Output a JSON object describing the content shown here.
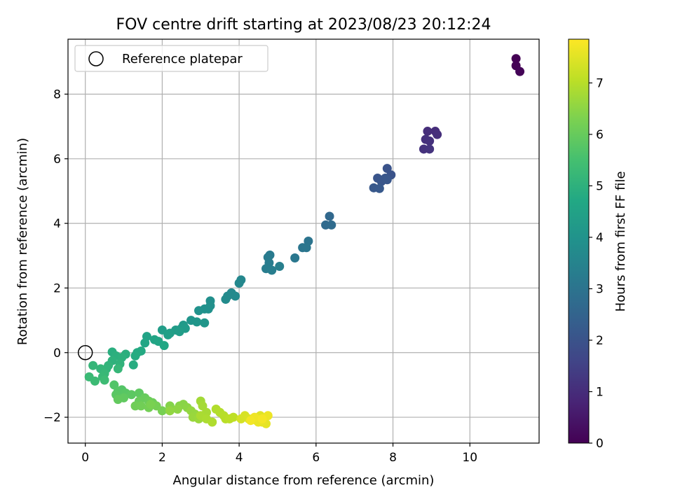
{
  "chart_data": {
    "type": "scatter",
    "title": "FOV centre drift starting at 2023/08/23 20:12:24",
    "xlabel": "Angular distance from reference (arcmin)",
    "ylabel": "Rotation from reference (arcmin)",
    "xlim": [
      -0.45,
      11.8
    ],
    "ylim": [
      -2.8,
      9.7
    ],
    "xticks": [
      0,
      2,
      4,
      6,
      8,
      10
    ],
    "yticks": [
      -2,
      0,
      2,
      4,
      6,
      8
    ],
    "xtick_labels": [
      "0",
      "2",
      "4",
      "6",
      "8",
      "10"
    ],
    "ytick_labels": [
      "−2",
      "0",
      "2",
      "4",
      "6",
      "8"
    ],
    "grid": true,
    "legend": {
      "placement": "upper-left",
      "entries": [
        {
          "label": "Reference platepar",
          "marker": "open-circle"
        }
      ]
    },
    "reference_point": {
      "x": 0,
      "y": 0
    },
    "colorbar": {
      "label": "Hours from first FF file",
      "range": [
        0,
        7.85
      ],
      "colormap": "viridis",
      "ticks": [
        0,
        1,
        2,
        3,
        4,
        5,
        6,
        7
      ],
      "tick_labels": [
        "0",
        "1",
        "2",
        "3",
        "4",
        "5",
        "6",
        "7"
      ]
    },
    "series": [
      {
        "points": [
          [
            11.2,
            9.1,
            0.0
          ],
          [
            11.2,
            8.88,
            0.03
          ],
          [
            11.3,
            8.7,
            0.06
          ],
          [
            9.1,
            6.85,
            1.0
          ],
          [
            8.9,
            6.85,
            1.02
          ],
          [
            9.15,
            6.75,
            1.05
          ],
          [
            8.85,
            6.6,
            1.08
          ],
          [
            8.95,
            6.55,
            1.11
          ],
          [
            8.8,
            6.3,
            1.14
          ],
          [
            8.95,
            6.3,
            1.17
          ],
          [
            7.85,
            5.7,
            2.0
          ],
          [
            7.95,
            5.5,
            2.02
          ],
          [
            7.6,
            5.4,
            2.05
          ],
          [
            7.8,
            5.4,
            2.08
          ],
          [
            7.7,
            5.3,
            2.1
          ],
          [
            7.85,
            5.35,
            2.12
          ],
          [
            7.5,
            5.1,
            2.15
          ],
          [
            7.65,
            5.08,
            2.18
          ],
          [
            6.35,
            4.22,
            2.65
          ],
          [
            6.25,
            3.95,
            2.7
          ],
          [
            6.4,
            3.95,
            2.73
          ],
          [
            5.8,
            3.45,
            3.0
          ],
          [
            5.65,
            3.25,
            3.05
          ],
          [
            5.75,
            3.25,
            3.08
          ],
          [
            5.45,
            2.93,
            3.12
          ],
          [
            4.8,
            3.02,
            3.2
          ],
          [
            4.75,
            2.95,
            3.23
          ],
          [
            4.78,
            2.78,
            3.26
          ],
          [
            4.7,
            2.6,
            3.29
          ],
          [
            4.85,
            2.55,
            3.32
          ],
          [
            5.05,
            2.67,
            3.35
          ],
          [
            4.05,
            2.25,
            3.6
          ],
          [
            4.0,
            2.15,
            3.63
          ],
          [
            3.8,
            1.85,
            3.66
          ],
          [
            3.7,
            1.75,
            3.69
          ],
          [
            3.9,
            1.75,
            3.72
          ],
          [
            3.65,
            1.65,
            3.75
          ],
          [
            3.25,
            1.6,
            3.85
          ],
          [
            3.25,
            1.45,
            3.88
          ],
          [
            3.2,
            1.35,
            3.91
          ],
          [
            3.1,
            1.35,
            3.94
          ],
          [
            2.95,
            1.3,
            3.97
          ],
          [
            2.75,
            1.0,
            4.05
          ],
          [
            2.9,
            0.95,
            4.08
          ],
          [
            3.1,
            0.92,
            4.11
          ],
          [
            2.55,
            0.85,
            4.2
          ],
          [
            2.5,
            0.75,
            4.23
          ],
          [
            2.6,
            0.75,
            4.26
          ],
          [
            2.35,
            0.7,
            4.29
          ],
          [
            2.0,
            0.7,
            4.32
          ],
          [
            2.45,
            0.65,
            4.35
          ],
          [
            2.2,
            0.6,
            4.38
          ],
          [
            2.15,
            0.55,
            4.41
          ],
          [
            1.6,
            0.5,
            4.55
          ],
          [
            1.8,
            0.4,
            4.58
          ],
          [
            1.9,
            0.35,
            4.61
          ],
          [
            1.55,
            0.3,
            4.64
          ],
          [
            2.05,
            0.22,
            4.67
          ],
          [
            1.45,
            0.05,
            4.75
          ],
          [
            1.35,
            0.0,
            4.78
          ],
          [
            1.3,
            -0.1,
            4.81
          ],
          [
            1.25,
            -0.38,
            4.84
          ],
          [
            0.7,
            0.02,
            4.9
          ],
          [
            1.05,
            -0.05,
            4.93
          ],
          [
            0.8,
            -0.1,
            4.96
          ],
          [
            0.95,
            -0.15,
            4.99
          ],
          [
            0.7,
            -0.25,
            5.02
          ],
          [
            0.9,
            -0.35,
            5.05
          ],
          [
            0.6,
            -0.4,
            5.08
          ],
          [
            0.55,
            -0.5,
            5.11
          ],
          [
            0.4,
            -0.5,
            5.14
          ],
          [
            0.2,
            -0.4,
            5.17
          ],
          [
            0.85,
            -0.5,
            5.2
          ],
          [
            0.5,
            -0.65,
            5.23
          ],
          [
            0.45,
            -0.75,
            5.26
          ],
          [
            0.1,
            -0.75,
            5.29
          ],
          [
            0.25,
            -0.88,
            5.32
          ],
          [
            0.5,
            -0.85,
            5.35
          ],
          [
            0.75,
            -1.0,
            5.7
          ],
          [
            0.95,
            -1.15,
            5.73
          ],
          [
            0.85,
            -1.2,
            5.76
          ],
          [
            1.05,
            -1.25,
            5.79
          ],
          [
            0.8,
            -1.3,
            5.82
          ],
          [
            1.2,
            -1.3,
            5.85
          ],
          [
            1.4,
            -1.25,
            5.88
          ],
          [
            1.0,
            -1.4,
            5.91
          ],
          [
            0.85,
            -1.45,
            5.94
          ],
          [
            1.55,
            -1.4,
            6.0
          ],
          [
            1.4,
            -1.5,
            6.03
          ],
          [
            1.65,
            -1.5,
            6.06
          ],
          [
            1.75,
            -1.55,
            6.09
          ],
          [
            1.3,
            -1.65,
            6.12
          ],
          [
            1.45,
            -1.65,
            6.15
          ],
          [
            1.65,
            -1.7,
            6.18
          ],
          [
            1.85,
            -1.65,
            6.21
          ],
          [
            2.0,
            -1.8,
            6.24
          ],
          [
            1.7,
            -1.6,
            6.27
          ],
          [
            2.2,
            -1.65,
            6.4
          ],
          [
            2.45,
            -1.65,
            6.43
          ],
          [
            2.55,
            -1.6,
            6.46
          ],
          [
            2.65,
            -1.7,
            6.49
          ],
          [
            2.4,
            -1.75,
            6.52
          ],
          [
            2.2,
            -1.8,
            6.55
          ],
          [
            2.75,
            -1.8,
            6.58
          ],
          [
            2.85,
            -1.9,
            6.61
          ],
          [
            2.8,
            -2.0,
            6.64
          ],
          [
            2.95,
            -2.05,
            6.67
          ],
          [
            3.0,
            -1.5,
            6.75
          ],
          [
            3.05,
            -1.65,
            6.78
          ],
          [
            3.15,
            -1.85,
            6.81
          ],
          [
            3.0,
            -1.95,
            6.84
          ],
          [
            3.15,
            -2.05,
            6.87
          ],
          [
            3.3,
            -2.15,
            6.9
          ],
          [
            3.4,
            -1.75,
            6.93
          ],
          [
            3.5,
            -1.85,
            6.96
          ],
          [
            3.6,
            -1.95,
            6.99
          ],
          [
            3.65,
            -2.05,
            7.02
          ],
          [
            3.75,
            -2.05,
            7.05
          ],
          [
            3.85,
            -2.0,
            7.08
          ],
          [
            4.05,
            -2.05,
            7.35
          ],
          [
            4.15,
            -1.95,
            7.38
          ],
          [
            4.25,
            -2.05,
            7.41
          ],
          [
            4.35,
            -2.05,
            7.44
          ],
          [
            4.45,
            -2.1,
            7.47
          ],
          [
            4.55,
            -1.95,
            7.5
          ],
          [
            4.65,
            -2.05,
            7.53
          ],
          [
            4.7,
            -2.2,
            7.56
          ],
          [
            4.6,
            -2.15,
            7.59
          ],
          [
            4.5,
            -2.15,
            7.62
          ],
          [
            4.75,
            -1.95,
            7.65
          ],
          [
            4.4,
            -2.0,
            7.68
          ],
          [
            4.3,
            -2.1,
            7.71
          ],
          [
            4.6,
            -2.05,
            7.74
          ]
        ]
      }
    ]
  }
}
